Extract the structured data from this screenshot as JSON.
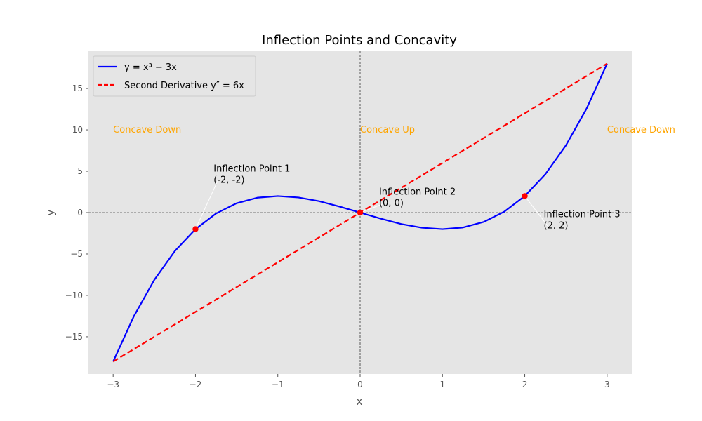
{
  "chart_data": {
    "type": "line",
    "title": "Inflection Points and Concavity",
    "xlabel": "x",
    "ylabel": "y",
    "xlim": [
      -3.3,
      3.3
    ],
    "ylim": [
      -19.5,
      19.5
    ],
    "xticks": [
      -3,
      -2,
      -1,
      0,
      1,
      2,
      3
    ],
    "xtick_labels": [
      "−3",
      "−2",
      "−1",
      "0",
      "1",
      "2",
      "3"
    ],
    "yticks": [
      -15,
      -10,
      -5,
      0,
      5,
      10,
      15
    ],
    "ytick_labels": [
      "−15",
      "−10",
      "−5",
      "0",
      "5",
      "10",
      "15"
    ],
    "grid": false,
    "background": "#e5e5e5",
    "legend_position": "upper-left",
    "series": [
      {
        "name": "y = x³ − 3x",
        "style": "solid",
        "color": "#0000ff",
        "x": [
          -3,
          -2.75,
          -2.5,
          -2.25,
          -2,
          -1.75,
          -1.5,
          -1.25,
          -1,
          -0.75,
          -0.5,
          -0.25,
          0,
          0.25,
          0.5,
          0.75,
          1,
          1.25,
          1.5,
          1.75,
          2,
          2.25,
          2.5,
          2.75,
          3
        ],
        "y": [
          -18,
          -12.55,
          -8.13,
          -4.64,
          -2,
          -0.11,
          1.13,
          1.8,
          2,
          1.83,
          1.38,
          0.73,
          0,
          -0.73,
          -1.38,
          -1.83,
          -2,
          -1.8,
          -1.13,
          0.11,
          2,
          4.64,
          8.13,
          12.55,
          18
        ]
      },
      {
        "name": "Second Derivative y″ = 6x",
        "style": "dashed",
        "color": "#ff0000",
        "x": [
          -3,
          3
        ],
        "y": [
          -18,
          18
        ]
      }
    ],
    "points": [
      {
        "x": -2,
        "y": -2,
        "color": "#ff0000"
      },
      {
        "x": 0,
        "y": 0,
        "color": "#ff0000"
      },
      {
        "x": 2,
        "y": 2,
        "color": "#ff0000"
      }
    ],
    "annotations": [
      {
        "line1": "Inflection Point 1",
        "line2": "(-2, -2)",
        "x": -2,
        "y": -2,
        "text_x": -1.78,
        "text_y": 4.2
      },
      {
        "line1": "Inflection Point 2",
        "line2": "(0, 0)",
        "x": 0,
        "y": 0,
        "text_x": 0.23,
        "text_y": 1.4
      },
      {
        "line1": "Inflection Point 3",
        "line2": "(2, 2)",
        "x": 2,
        "y": 2,
        "text_x": 2.23,
        "text_y": -1.3
      }
    ],
    "region_labels": [
      {
        "text": "Concave Down",
        "x": -3,
        "y": 10
      },
      {
        "text": "Concave Up",
        "x": 0,
        "y": 10
      },
      {
        "text": "Concave Down",
        "x": 3,
        "y": 10
      }
    ],
    "region_color": "#ffa500",
    "reference_lines": [
      {
        "orientation": "horizontal",
        "value": 0
      },
      {
        "orientation": "vertical",
        "value": 0
      }
    ]
  }
}
